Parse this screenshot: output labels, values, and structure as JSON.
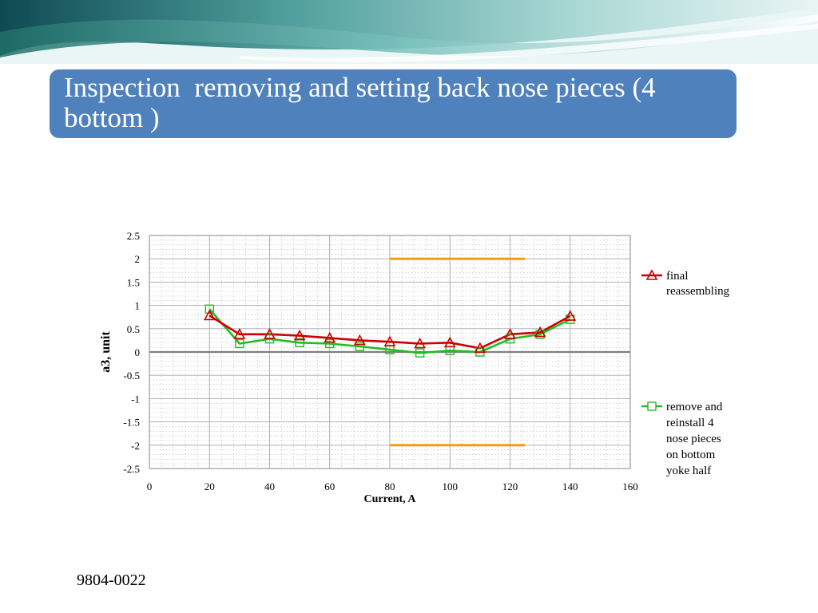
{
  "slide": {
    "title": "Inspection  removing and setting back nose pieces (4 bottom )",
    "footer": "9804-0022"
  },
  "colors": {
    "title_bg": "#4f81bd",
    "series_red": "#cc0000",
    "series_green": "#22bb22",
    "limit_lines": "#f39c12"
  },
  "chart_data": {
    "type": "line",
    "title": "",
    "xlabel": "Current, A",
    "ylabel": "a3, unit",
    "xlim": [
      0,
      160
    ],
    "ylim": [
      -2.5,
      2.5
    ],
    "x_ticks": [
      0,
      20,
      40,
      60,
      80,
      100,
      120,
      140,
      160
    ],
    "y_ticks": [
      2.5,
      2,
      1.5,
      1,
      0.5,
      0,
      -0.5,
      -1,
      -1.5,
      -2,
      -2.5
    ],
    "grid": true,
    "legend_position": "right",
    "series": [
      {
        "name": "final reassembling",
        "marker": "triangle",
        "x": [
          20,
          30,
          40,
          50,
          60,
          70,
          80,
          90,
          100,
          110,
          120,
          130,
          140
        ],
        "values": [
          0.78,
          0.38,
          0.38,
          0.35,
          0.3,
          0.25,
          0.22,
          0.18,
          0.2,
          0.08,
          0.38,
          0.42,
          0.77
        ]
      },
      {
        "name": "remove and reinstall 4 nose pieces on bottom yoke half",
        "marker": "square",
        "x": [
          20,
          30,
          40,
          50,
          60,
          70,
          80,
          90,
          100,
          110,
          120,
          130,
          140
        ],
        "values": [
          0.92,
          0.18,
          0.28,
          0.2,
          0.18,
          0.12,
          0.05,
          -0.02,
          0.03,
          0.0,
          0.28,
          0.38,
          0.7
        ]
      }
    ],
    "limit_lines": [
      {
        "x": [
          80,
          125
        ],
        "y": 2
      },
      {
        "x": [
          80,
          125
        ],
        "y": -2
      }
    ]
  }
}
